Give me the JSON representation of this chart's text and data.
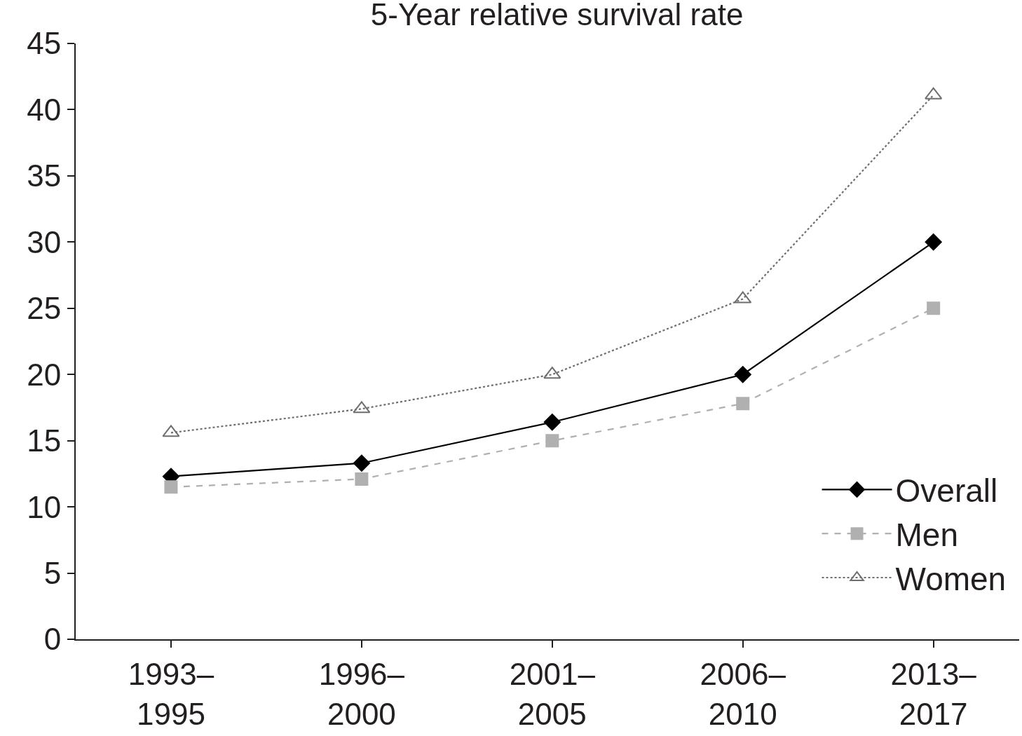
{
  "chart_data": {
    "type": "line",
    "title": "5-Year relative survival rate",
    "categories": [
      "1993–1995",
      "1996–2000",
      "2001–2005",
      "2006–2010",
      "2013–2017"
    ],
    "series": [
      {
        "name": "Overall",
        "color": "#000000",
        "marker": "diamond",
        "line_style": "solid",
        "values": [
          12.3,
          13.3,
          16.4,
          20.0,
          30.0
        ]
      },
      {
        "name": "Men",
        "color": "#b0b0b0",
        "marker": "square",
        "line_style": "dashed",
        "values": [
          11.5,
          12.1,
          15.0,
          17.8,
          25.0
        ]
      },
      {
        "name": "Women",
        "color": "#6e6e6e",
        "marker": "triangle",
        "line_style": "dotted",
        "values": [
          15.6,
          17.4,
          20.0,
          25.7,
          41.1
        ]
      }
    ],
    "ylim": [
      0,
      45
    ],
    "yticks": [
      0,
      5,
      10,
      15,
      20,
      25,
      30,
      35,
      40,
      45
    ],
    "grid": false,
    "legend": "bottom right"
  }
}
